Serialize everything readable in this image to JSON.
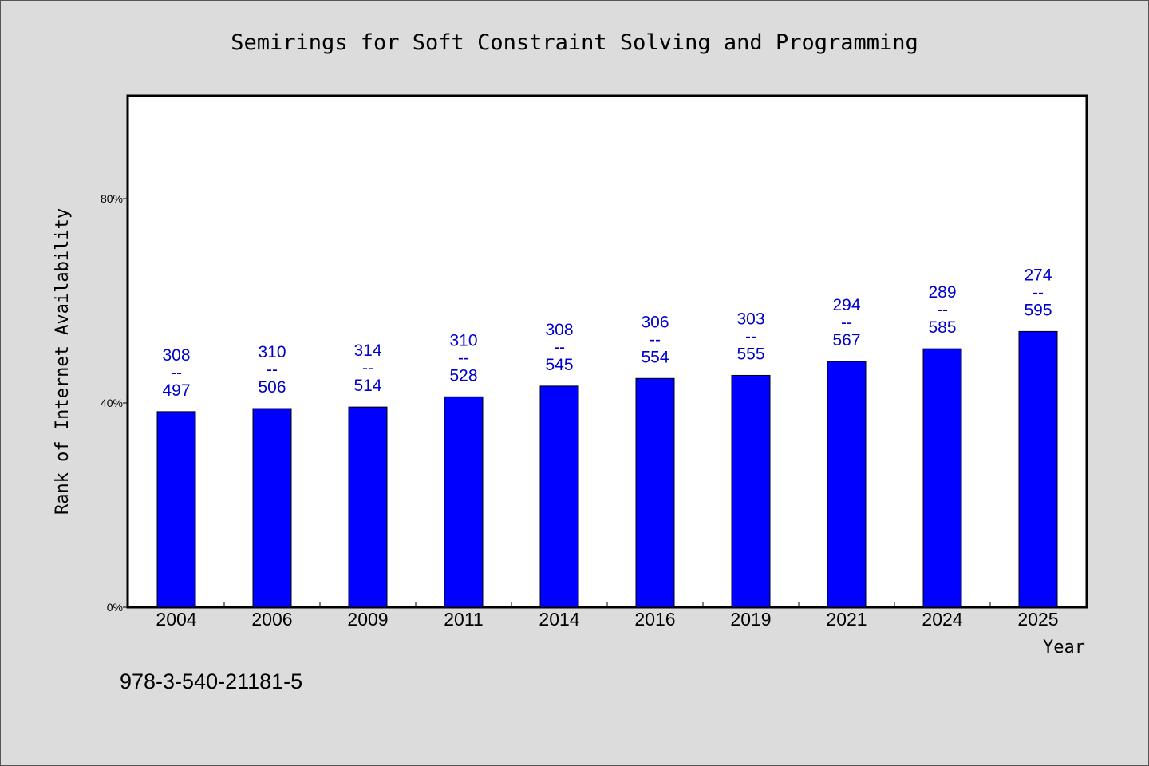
{
  "colors": {
    "background": "#dcdcdc",
    "plot_background": "#ffffff",
    "bar": "#0000ff",
    "data_label": "#0000cc",
    "axis": "#000000"
  },
  "footer_text": "978-3-540-21181-5",
  "chart_data": {
    "type": "bar",
    "title": "Semirings for Soft Constraint Solving and Programming",
    "xlabel": "Year",
    "ylabel": "Rank of Internet Availability",
    "categories": [
      "2004",
      "2006",
      "2009",
      "2011",
      "2014",
      "2016",
      "2019",
      "2021",
      "2024",
      "2025"
    ],
    "values": [
      38.3,
      38.9,
      39.2,
      41.2,
      43.3,
      44.8,
      45.4,
      48.1,
      50.6,
      54.0
    ],
    "value_unit": "%",
    "labels_top": [
      "308",
      "310",
      "314",
      "310",
      "308",
      "306",
      "303",
      "294",
      "289",
      "274"
    ],
    "labels_separator": "--",
    "labels_bottom": [
      "497",
      "506",
      "514",
      "528",
      "545",
      "554",
      "555",
      "567",
      "585",
      "595"
    ],
    "ylim": [
      0,
      100
    ],
    "yticks": [
      0,
      40,
      80
    ],
    "ytick_labels": [
      "0%",
      "40%",
      "80%"
    ],
    "grid": false,
    "legend": "none"
  }
}
